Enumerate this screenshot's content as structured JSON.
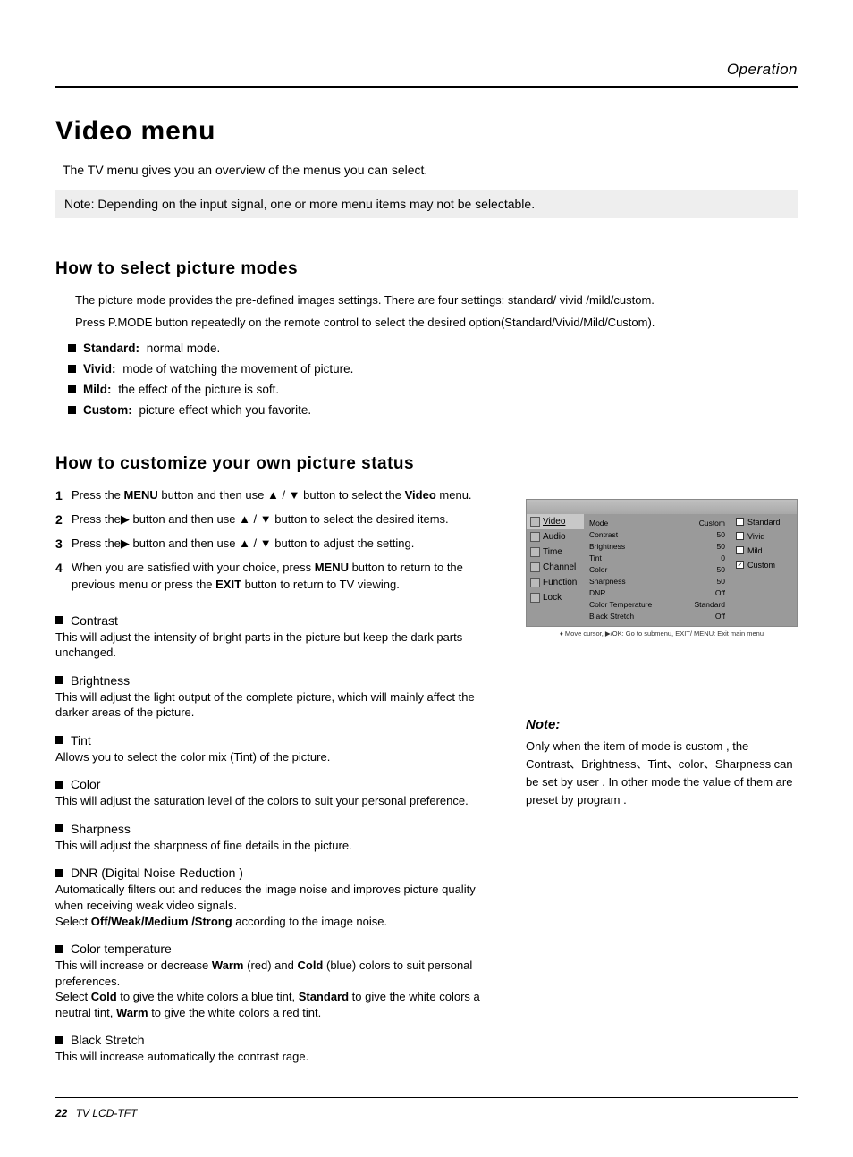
{
  "header": {
    "section": "Operation"
  },
  "title": "Video menu",
  "intro": "The TV menu gives you an overview of the menus you can select.",
  "top_note": "Note: Depending on the input signal, one or more menu items may not be selectable.",
  "section1": {
    "heading": "How to select picture modes",
    "intro1": "The picture mode provides the pre-defined images settings. There are four settings: standard/ vivid /mild/custom.",
    "intro2": "Press  P.MODE button repeatedly on the remote control to select the desired option(Standard/Vivid/Mild/Custom).",
    "bullets": [
      {
        "label": "Standard:",
        "text": " normal mode."
      },
      {
        "label": "Vivid:",
        "text": " mode of watching the movement of picture."
      },
      {
        "label": "Mild:",
        "text": " the effect of the picture is soft."
      },
      {
        "label": "Custom:",
        "text": " picture effect which you favorite."
      }
    ]
  },
  "section2": {
    "heading": "How to customize your own picture status",
    "steps": [
      {
        "n": "1",
        "pre": "Press the ",
        "b1": "MENU",
        "mid": " button and then use ",
        "post": " button to select the ",
        "b2": "Video",
        "tail": " menu."
      },
      {
        "n": "2",
        "pre": "Press the",
        "arrow": "▶",
        "mid": " button and then use ",
        "post": " button to select the desired items",
        "b2": "",
        "tail": "."
      },
      {
        "n": "3",
        "pre": "Press the",
        "arrow": "▶",
        "mid": " button and then use ",
        "post": " button to adjust the setting",
        "b2": "",
        "tail": "."
      },
      {
        "n": "4",
        "text": "When you are satisfied with your choice,  press ",
        "b1": "MENU",
        "mid2": " button to return to the previous menu or press the ",
        "b2": "EXIT",
        "tail": " button to return to TV viewing."
      }
    ],
    "params": [
      {
        "title": "Contrast",
        "desc": "This will adjust the intensity of bright parts in the picture but keep the dark parts unchanged."
      },
      {
        "title": "Brightness",
        "desc": "This will adjust the light output of the complete picture, which will mainly affect the darker areas of the picture."
      },
      {
        "title": "Tint",
        "desc": "Allows you to select the color mix (Tint) of the picture."
      },
      {
        "title": "Color",
        "desc": "This will adjust the saturation level of the colors to suit your personal preference."
      },
      {
        "title": "Sharpness",
        "desc": "This will adjust the sharpness of fine details in the picture."
      },
      {
        "title": "DNR (Digital Noise Reduction )",
        "desc_pre": "Automatically filters out and reduces the image noise and improves picture quality when receiving weak video signals.\nSelect ",
        "desc_b": "Off/Weak/Medium /Strong",
        "desc_post": " according to the image noise."
      },
      {
        "title": "Color temperature",
        "desc_pre": "This will increase or decrease ",
        "w1": "Warm",
        "m1": " (red) and ",
        "w2": "Cold",
        "m2": " (blue) colors to suit personal preferences.\nSelect ",
        "w3": "Cold",
        "m3": " to give the white colors a blue tint, ",
        "w4": "Standard",
        "m4": " to give the white colors a neutral tint, ",
        "w5": "Warm",
        "m5": " to give the white colors a red tint."
      },
      {
        "title": "Black Stretch",
        "desc": "This will increase automatically the contrast rage."
      }
    ]
  },
  "osd": {
    "nav": [
      "Video",
      "Audio",
      "Time",
      "Channel",
      "Function",
      "Lock"
    ],
    "rows": [
      [
        "Mode",
        "Custom"
      ],
      [
        "Contrast",
        "50"
      ],
      [
        "Brightness",
        "50"
      ],
      [
        "Tint",
        "0"
      ],
      [
        "Color",
        "50"
      ],
      [
        "Sharpness",
        "50"
      ],
      [
        "DNR",
        "Off"
      ],
      [
        "Color Temperature",
        "Standard"
      ],
      [
        "Black Stretch",
        "Off"
      ]
    ],
    "opts": [
      {
        "label": "Standard",
        "checked": false
      },
      {
        "label": "Vivid",
        "checked": false
      },
      {
        "label": "Mild",
        "checked": false
      },
      {
        "label": "Custom",
        "checked": true
      }
    ],
    "hint": "Move cursor,  ▶/OK: Go to submenu, EXIT/ MENU: Exit main menu"
  },
  "note": {
    "title": "Note:",
    "text": "Only when the item of mode is custom , the Contrast、Brightness、Tint、color、Sharpness can be set by user . In other mode the value of them are preset by program ."
  },
  "footer": {
    "page": "22",
    "label": "TV LCD-TFT"
  }
}
